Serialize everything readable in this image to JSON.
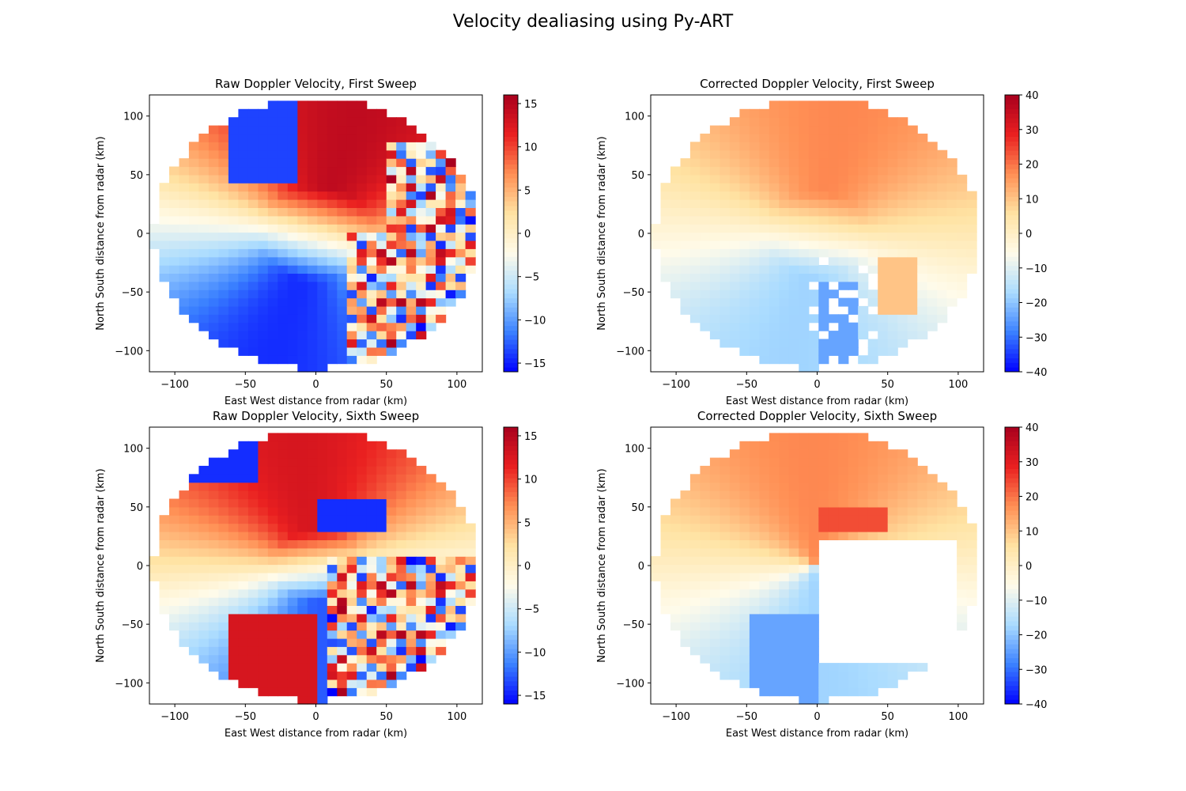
{
  "figure": {
    "title": "Velocity dealiasing using Py-ART"
  },
  "colormap": {
    "name": "RdYlBu_r",
    "stops": [
      "#0000ff",
      "#3a80ff",
      "#a9dbff",
      "#fffbea",
      "#ffe3a3",
      "#ff9055",
      "#ea2020",
      "#a8001e"
    ]
  },
  "chart_data": [
    {
      "type": "heatmap",
      "title": "Raw Doppler Velocity, First Sweep",
      "xlabel": "East West distance from radar (km)",
      "ylabel": "North South distance from radar (km)",
      "xlim": [
        -118,
        118
      ],
      "ylim": [
        -118,
        118
      ],
      "xticks": [
        -100,
        -50,
        0,
        50,
        100
      ],
      "yticks": [
        -100,
        -50,
        0,
        50,
        100
      ],
      "colorbar": {
        "range": [
          -16,
          16
        ],
        "ticks": [
          -15,
          -10,
          -5,
          0,
          5,
          10,
          15
        ]
      },
      "field": "raw_first"
    },
    {
      "type": "heatmap",
      "title": "Corrected Doppler Velocity, First Sweep",
      "xlabel": "East West distance from radar (km)",
      "ylabel": "North South distance from radar (km)",
      "xlim": [
        -118,
        118
      ],
      "ylim": [
        -118,
        118
      ],
      "xticks": [
        -100,
        -50,
        0,
        50,
        100
      ],
      "yticks": [
        -100,
        -50,
        0,
        50,
        100
      ],
      "colorbar": {
        "range": [
          -40,
          40
        ],
        "ticks": [
          -40,
          -30,
          -20,
          -10,
          0,
          10,
          20,
          30,
          40
        ]
      },
      "field": "corrected_first"
    },
    {
      "type": "heatmap",
      "title": "Raw Doppler Velocity, Sixth Sweep",
      "xlabel": "East West distance from radar (km)",
      "ylabel": "North South distance from radar (km)",
      "xlim": [
        -118,
        118
      ],
      "ylim": [
        -118,
        118
      ],
      "xticks": [
        -100,
        -50,
        0,
        50,
        100
      ],
      "yticks": [
        -100,
        -50,
        0,
        50,
        100
      ],
      "colorbar": {
        "range": [
          -16,
          16
        ],
        "ticks": [
          -15,
          -10,
          -5,
          0,
          5,
          10,
          15
        ]
      },
      "field": "raw_sixth"
    },
    {
      "type": "heatmap",
      "title": "Corrected Doppler Velocity, Sixth Sweep",
      "xlabel": "East West distance from radar (km)",
      "ylabel": "North South distance from radar (km)",
      "xlim": [
        -118,
        118
      ],
      "ylim": [
        -118,
        118
      ],
      "xticks": [
        -100,
        -50,
        0,
        50,
        100
      ],
      "yticks": [
        -100,
        -50,
        0,
        50,
        100
      ],
      "colorbar": {
        "range": [
          -40,
          40
        ],
        "ticks": [
          -40,
          -30,
          -20,
          -10,
          0,
          10,
          20,
          30,
          40
        ]
      },
      "field": "corrected_sixth"
    }
  ]
}
